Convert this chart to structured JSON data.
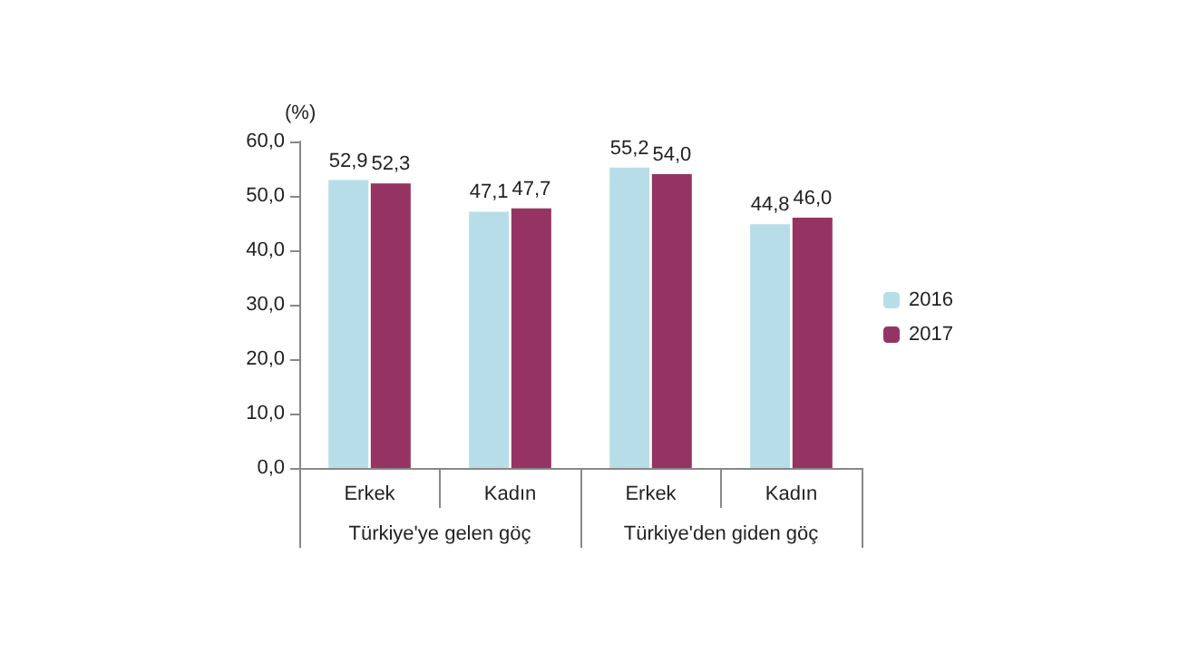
{
  "chart_data": {
    "type": "bar",
    "ylabel": "(%)",
    "categories": [
      "Erkek",
      "Kadın",
      "Erkek",
      "Kadın"
    ],
    "annotations": [
      "Türkiye'ye gelen göç",
      "Türkiye'den giden göç"
    ],
    "series": [
      {
        "name": "2016",
        "color": "#b7dee8",
        "values": [
          52.9,
          47.1,
          55.2,
          44.8
        ],
        "value_labels": [
          "52,9",
          "47,1",
          "55,2",
          "44,8"
        ]
      },
      {
        "name": "2017",
        "color": "#953462",
        "values": [
          52.3,
          47.7,
          54.0,
          46.0
        ],
        "value_labels": [
          "52,3",
          "47,7",
          "54,0",
          "46,0"
        ]
      }
    ],
    "ylim": [
      0,
      60
    ],
    "yticks": [
      {
        "value": 0,
        "label": "0,0"
      },
      {
        "value": 10,
        "label": "10,0"
      },
      {
        "value": 20,
        "label": "20,0"
      },
      {
        "value": 30,
        "label": "30,0"
      },
      {
        "value": 40,
        "label": "40,0"
      },
      {
        "value": 50,
        "label": "50,0"
      },
      {
        "value": 60,
        "label": "60,0"
      }
    ],
    "grid": false,
    "legend": "right"
  }
}
